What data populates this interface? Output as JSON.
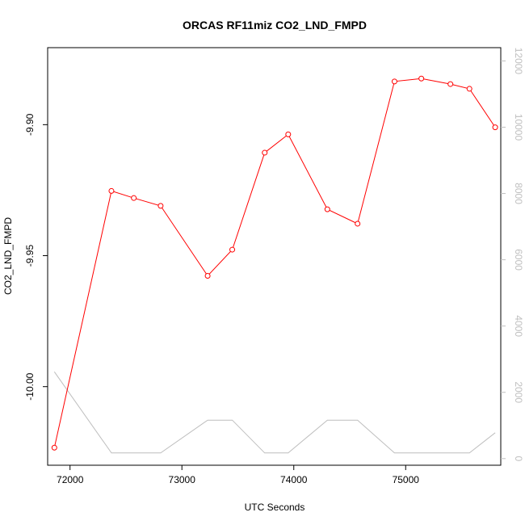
{
  "chart_data": {
    "type": "line",
    "title": "ORCAS RF11miz CO2_LND_FMPD",
    "xlabel": "UTC Seconds",
    "ylabel": "CO2_LND_FMPD",
    "xlim": [
      71800,
      75850
    ],
    "ylim": [
      -10.03,
      -9.8706
    ],
    "y2lim": [
      -200,
      12400
    ],
    "x_ticks": [
      72000,
      73000,
      74000,
      75000
    ],
    "x_tick_labels": [
      "72000",
      "73000",
      "74000",
      "75000"
    ],
    "y_ticks": [
      -10.0,
      -9.95,
      -9.9
    ],
    "y_tick_labels": [
      "-10.00",
      "-9.95",
      "-9.90"
    ],
    "y2_ticks": [
      0,
      2000,
      4000,
      6000,
      8000,
      10000,
      12000
    ],
    "y2_tick_labels": [
      "0",
      "2000",
      "4000",
      "6000",
      "8000",
      "10000",
      "12000"
    ],
    "colors": {
      "primary": "#ff0000",
      "secondary": "#bebebe"
    },
    "series": [
      {
        "axis": "left",
        "style": "line+markers",
        "x": [
          71860,
          72370,
          72570,
          72810,
          73230,
          73450,
          73740,
          73950,
          74300,
          74570,
          74900,
          75140,
          75400,
          75570,
          75800
        ],
        "y": [
          -10.0233,
          -9.9253,
          -9.928,
          -9.931,
          -9.9577,
          -9.9477,
          -9.9107,
          -9.9037,
          -9.9323,
          -9.9378,
          -9.8835,
          -9.8824,
          -9.8845,
          -9.8863,
          -9.901
        ]
      },
      {
        "axis": "right",
        "style": "line",
        "x": [
          71860,
          72370,
          72570,
          72810,
          73230,
          73450,
          73740,
          73950,
          74300,
          74570,
          74900,
          75140,
          75400,
          75570,
          75800
        ],
        "y": [
          2620,
          170,
          170,
          170,
          1160,
          1160,
          170,
          170,
          1160,
          1160,
          170,
          170,
          170,
          170,
          780
        ]
      }
    ]
  }
}
